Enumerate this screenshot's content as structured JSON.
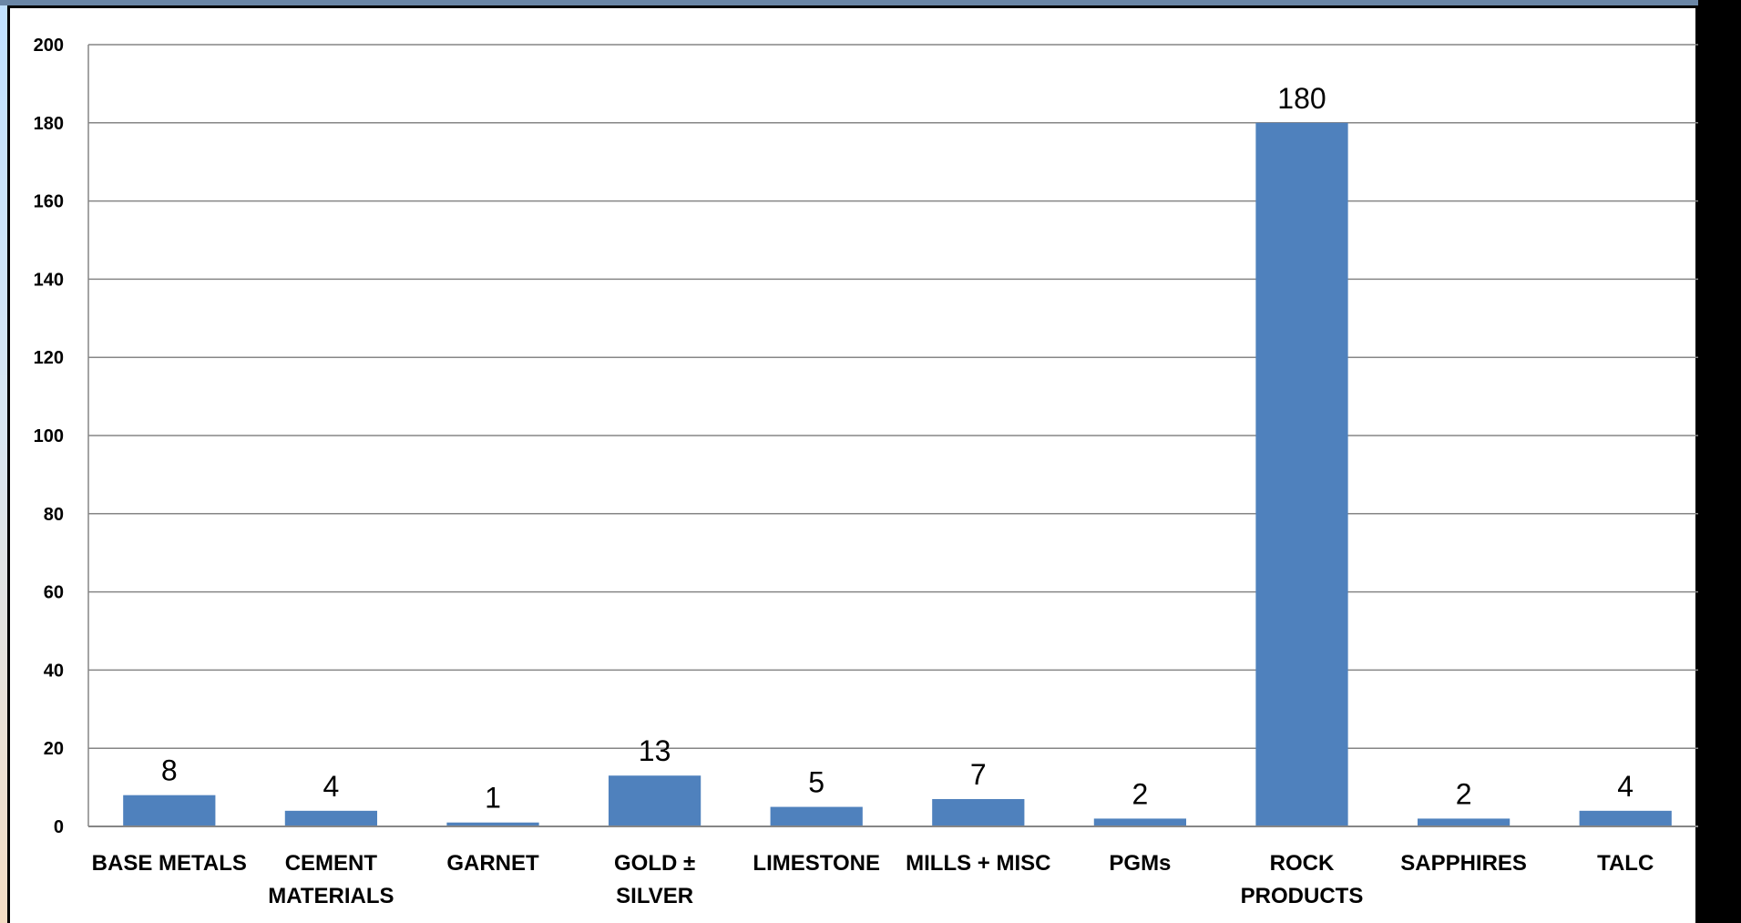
{
  "chart_data": {
    "type": "bar",
    "categories": [
      [
        "BASE METALS"
      ],
      [
        "CEMENT",
        "MATERIALS"
      ],
      [
        "GARNET"
      ],
      [
        "GOLD ±",
        "SILVER"
      ],
      [
        "LIMESTONE"
      ],
      [
        "MILLS + MISC"
      ],
      [
        "PGMs"
      ],
      [
        "ROCK",
        "PRODUCTS"
      ],
      [
        "SAPPHIRES"
      ],
      [
        "TALC"
      ]
    ],
    "values": [
      8,
      4,
      1,
      13,
      5,
      7,
      2,
      180,
      2,
      4
    ],
    "data_labels": [
      "8",
      "4",
      "1",
      "13",
      "5",
      "7",
      "2",
      "180",
      "2",
      "4"
    ],
    "yticks": [
      0,
      20,
      40,
      60,
      80,
      100,
      120,
      140,
      160,
      180,
      200
    ],
    "ylim": [
      0,
      200
    ],
    "title": "",
    "xlabel": "",
    "ylabel": "",
    "grid": true,
    "legend": "none",
    "bar_color": "#4f81bd",
    "gridline_color": "#868686"
  }
}
